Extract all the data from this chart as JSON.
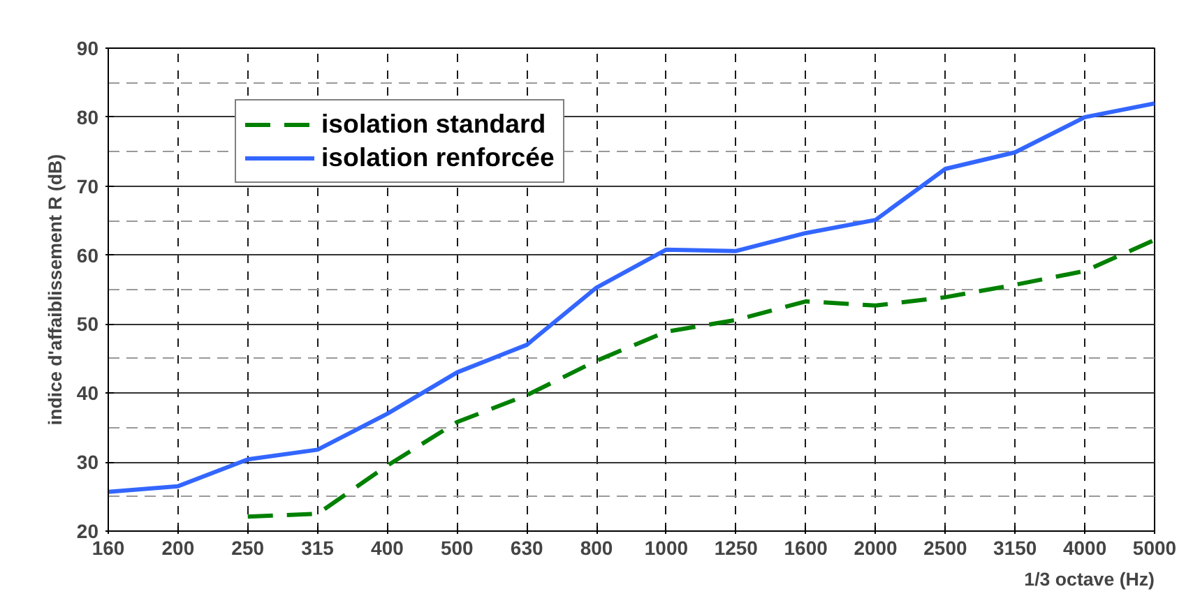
{
  "chart_data": {
    "type": "line",
    "xlabel": "1/3 octave (Hz)",
    "ylabel": "indice d'affaiblissement R (dB)",
    "categories": [
      "160",
      "200",
      "250",
      "315",
      "400",
      "500",
      "630",
      "800",
      "1000",
      "1250",
      "1600",
      "2000",
      "2500",
      "3150",
      "4000",
      "5000"
    ],
    "ylim": [
      20,
      90
    ],
    "yticks": [
      20,
      {
        "value": 25,
        "label": null
      },
      30,
      {
        "value": 35,
        "label": null
      },
      40,
      {
        "value": 45,
        "label": null
      },
      50,
      {
        "value": 55,
        "label": null
      },
      60,
      {
        "value": 65,
        "label": null
      },
      70,
      {
        "value": 75,
        "label": null
      },
      80,
      {
        "value": 85,
        "label": null
      },
      90
    ],
    "grid": true,
    "legend": "top left",
    "series": [
      {
        "name": "isolation standard",
        "color": "#008000",
        "line_style": "dashed",
        "values": [
          null,
          null,
          22.1,
          22.5,
          29.5,
          35.8,
          39.7,
          44.7,
          48.9,
          50.6,
          53.3,
          52.7,
          53.9,
          55.7,
          57.7,
          62.2
        ]
      },
      {
        "name": "isolation renforcée",
        "color": "#3366ff",
        "line_style": "solid",
        "values": [
          25.7,
          26.5,
          30.4,
          31.8,
          37.0,
          43.0,
          47.0,
          55.3,
          60.8,
          60.6,
          63.2,
          65.1,
          72.5,
          74.9,
          80.0,
          82.0
        ]
      }
    ]
  }
}
